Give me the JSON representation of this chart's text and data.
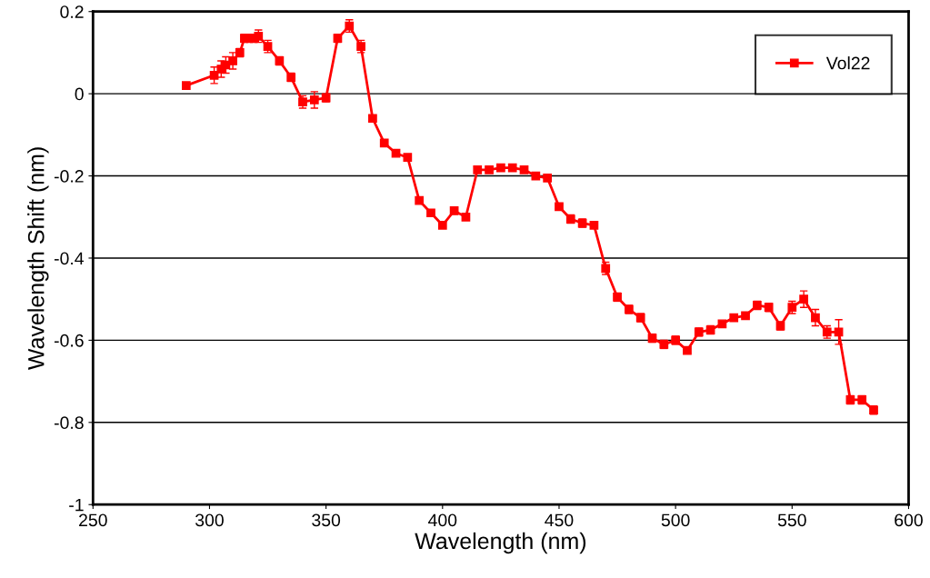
{
  "chart_data": {
    "type": "line",
    "xlabel": "Wavelength (nm)",
    "ylabel": "Wavelength Shift (nm)",
    "xlim": [
      250,
      600
    ],
    "xticks": [
      250,
      300,
      350,
      400,
      450,
      500,
      550,
      600
    ],
    "ylim": [
      -1,
      0.2
    ],
    "yticks": [
      -1,
      -0.8,
      -0.6,
      -0.4,
      -0.2,
      0,
      0.2
    ],
    "grid": "y",
    "legend": "top right",
    "marker": "square",
    "line_style": "solid",
    "x": [
      290,
      302,
      305,
      307,
      310,
      313,
      315,
      317,
      319,
      321,
      325,
      330,
      335,
      340,
      345,
      350,
      355,
      360,
      365,
      370,
      375,
      380,
      385,
      390,
      395,
      400,
      405,
      410,
      415,
      420,
      425,
      430,
      435,
      440,
      445,
      450,
      455,
      460,
      465,
      470,
      475,
      480,
      485,
      490,
      495,
      500,
      505,
      510,
      515,
      520,
      525,
      530,
      535,
      540,
      545,
      550,
      555,
      560,
      565,
      570,
      575,
      580,
      585
    ],
    "series": [
      {
        "name": "Vol22",
        "color": "#ff0000",
        "values": [
          0.02,
          0.045,
          0.06,
          0.07,
          0.08,
          0.1,
          0.135,
          0.135,
          0.135,
          0.14,
          0.115,
          0.08,
          0.04,
          -0.02,
          -0.015,
          -0.01,
          0.135,
          0.165,
          0.115,
          -0.06,
          -0.12,
          -0.145,
          -0.155,
          -0.26,
          -0.29,
          -0.32,
          -0.285,
          -0.3,
          -0.185,
          -0.185,
          -0.18,
          -0.18,
          -0.185,
          -0.2,
          -0.205,
          -0.275,
          -0.305,
          -0.315,
          -0.32,
          -0.425,
          -0.495,
          -0.525,
          -0.545,
          -0.595,
          -0.61,
          -0.6,
          -0.625,
          -0.58,
          -0.575,
          -0.56,
          -0.545,
          -0.54,
          -0.515,
          -0.52,
          -0.565,
          -0.52,
          -0.5,
          -0.545,
          -0.58,
          -0.58,
          -0.745,
          -0.745,
          -0.77
        ],
        "errors": [
          0.005,
          0.02,
          0.02,
          0.02,
          0.02,
          0.01,
          0.01,
          0.01,
          0.01,
          0.015,
          0.015,
          0.01,
          0.01,
          0.015,
          0.02,
          0.01,
          0.01,
          0.015,
          0.015,
          0.005,
          0.005,
          0.005,
          0.005,
          0.005,
          0.005,
          0.005,
          0.005,
          0.005,
          0.005,
          0.005,
          0.005,
          0.005,
          0.005,
          0.005,
          0.005,
          0.005,
          0.01,
          0.01,
          0.005,
          0.015,
          0.01,
          0.01,
          0.01,
          0.01,
          0.01,
          0.01,
          0.005,
          0.01,
          0.01,
          0.005,
          0.005,
          0.005,
          0.01,
          0.01,
          0.01,
          0.015,
          0.02,
          0.02,
          0.015,
          0.03,
          0.01,
          0.01,
          0.01
        ]
      }
    ]
  }
}
